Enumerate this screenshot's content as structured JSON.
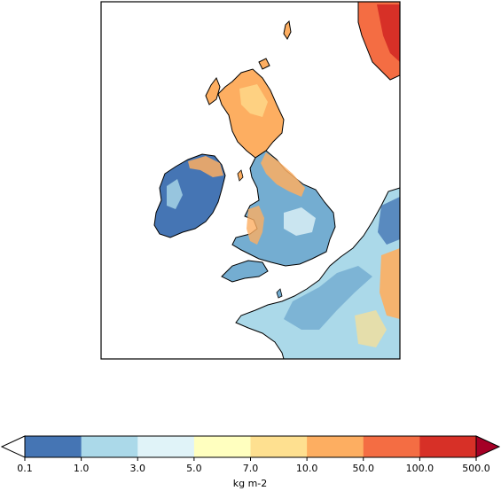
{
  "colorbar": {
    "ticks": [
      "0.1",
      "1.0",
      "3.0",
      "5.0",
      "7.0",
      "10.0",
      "50.0",
      "100.0",
      "500.0"
    ],
    "colors": [
      "#4575b4",
      "#abd9e9",
      "#e0f3f8",
      "#ffffbf",
      "#fee090",
      "#fdae61",
      "#f46d43",
      "#d73027"
    ],
    "under_color": "#ffffff",
    "over_color": "#a50026",
    "units": "kg m-2"
  },
  "map": {
    "region": "British Isles and north-west Europe",
    "coastline_color": "#000000",
    "land_dominant_colors": {
      "ireland": "#4575b4",
      "scotland": "#fdae61",
      "england_wales": "#74add1",
      "norway": "#d73027",
      "continent": "#abd9e9"
    }
  }
}
